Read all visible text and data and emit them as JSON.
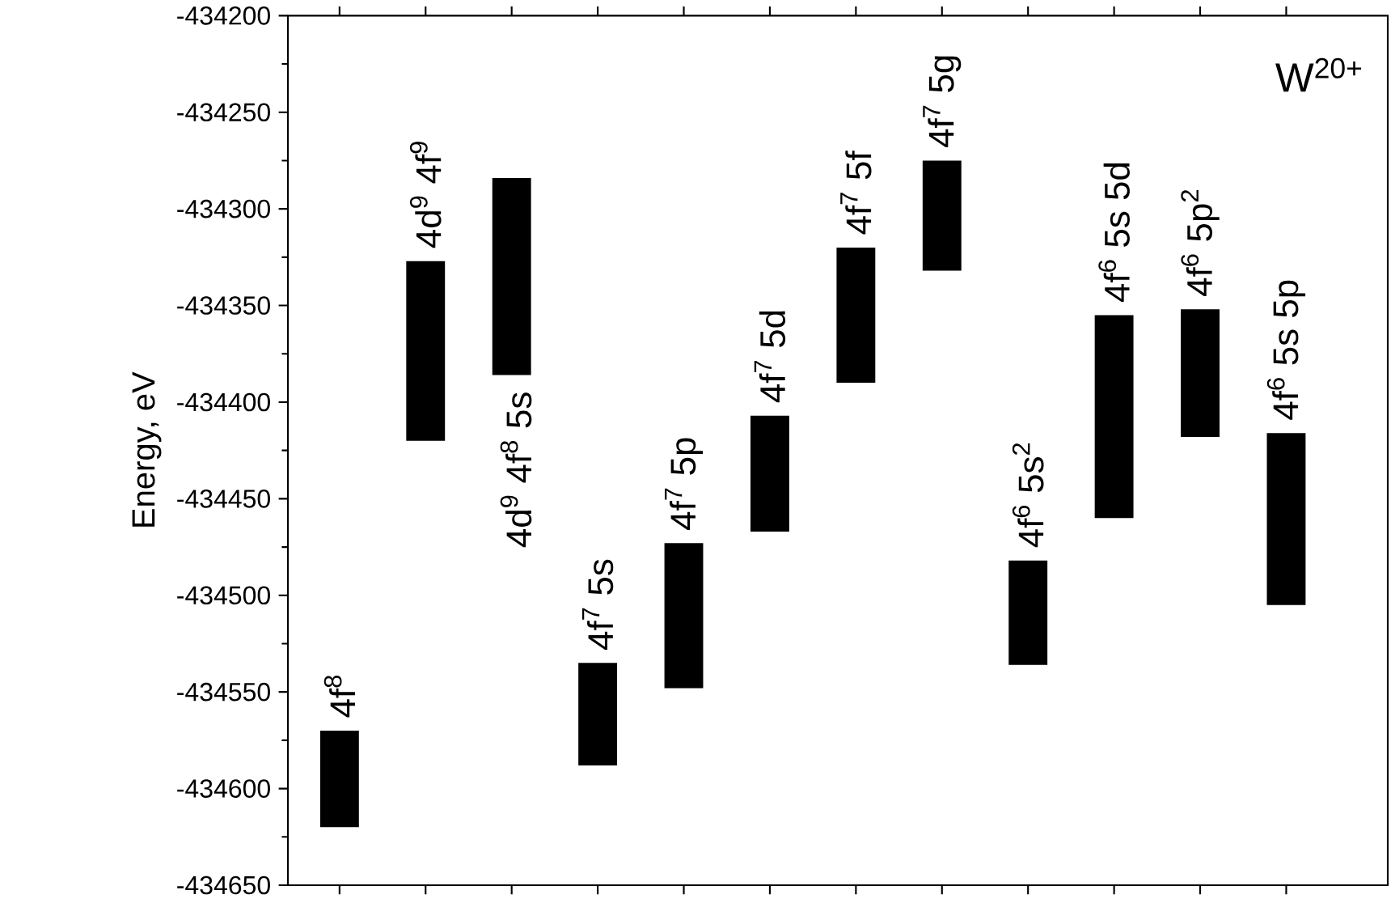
{
  "chart_data": {
    "type": "bar",
    "ylabel": "Energy, eV",
    "color": "#000000",
    "tick_labels": "y",
    "categories": [
      "4f$^{8}$",
      "4d$^{9}$ 4f$^{9}$",
      "4d$^{9}$ 4f$^{8}$ 5s",
      "4f$^{7}$ 5s",
      "4f$^{7}$ 5p",
      "4f$^{7}$ 5d",
      "4f$^{7}$ 5f",
      "4f$^{7}$ 5g",
      "4f$^{6}$ 5s$^{2}$",
      "4f$^{6}$ 5s 5d",
      "4f$^{6}$ 5p$^{2}$",
      "4f$^{6}$ 5s 5p"
    ],
    "base": [
      -434620,
      -434420,
      -434386,
      -434588,
      -434548,
      -434467,
      -434390,
      -434332,
      -434536,
      -434460,
      -434418,
      -434505
    ],
    "values": [
      50,
      93,
      102,
      53,
      75,
      60,
      70,
      57,
      54,
      105,
      66,
      89
    ],
    "ylim": [
      -434650,
      -434200
    ],
    "yticks": [
      -434650,
      -434600,
      -434550,
      -434500,
      -434450,
      -434400,
      -434350,
      -434300,
      -434250,
      -434200
    ],
    "annotations": [
      "W$^{20+}$"
    ]
  }
}
